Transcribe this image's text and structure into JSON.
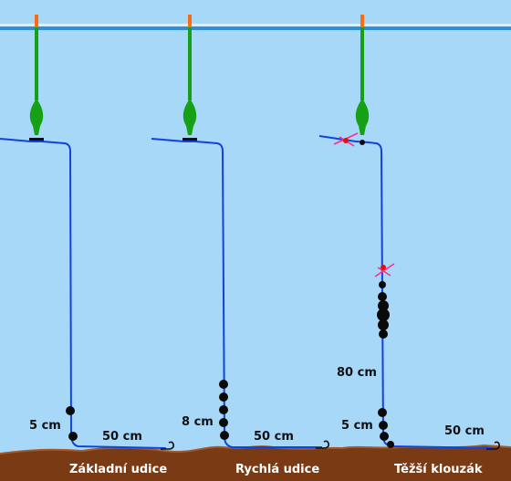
{
  "colors": {
    "water": "#a8d8f8",
    "water_surface": "#2e8fd6",
    "surface_highlight": "#d8f0ff",
    "line": "#1144dd",
    "float_body": "#16a016",
    "float_tip": "#ff6a10",
    "shot": "#0a0a0a",
    "knot": "#ff2d8a",
    "stop_bead": "#e01010",
    "bottom": "#7a3b14",
    "bottom_highlight": "#a2582a",
    "label_white": "#ffffff",
    "label_dark": "#111111"
  },
  "rigs": [
    {
      "id": "zakladni",
      "name": "Základní udice",
      "measure_shot_gap": "5 cm",
      "measure_hooklength": "50 cm"
    },
    {
      "id": "rychla",
      "name": "Rychlá udice",
      "measure_shot_gap": "8 cm",
      "measure_hooklength": "50 cm"
    },
    {
      "id": "tezsi",
      "name": "Těžší klouzák",
      "measure_shot_gap": "5 cm",
      "measure_hooklength": "50 cm",
      "measure_slide": "80 cm"
    }
  ]
}
